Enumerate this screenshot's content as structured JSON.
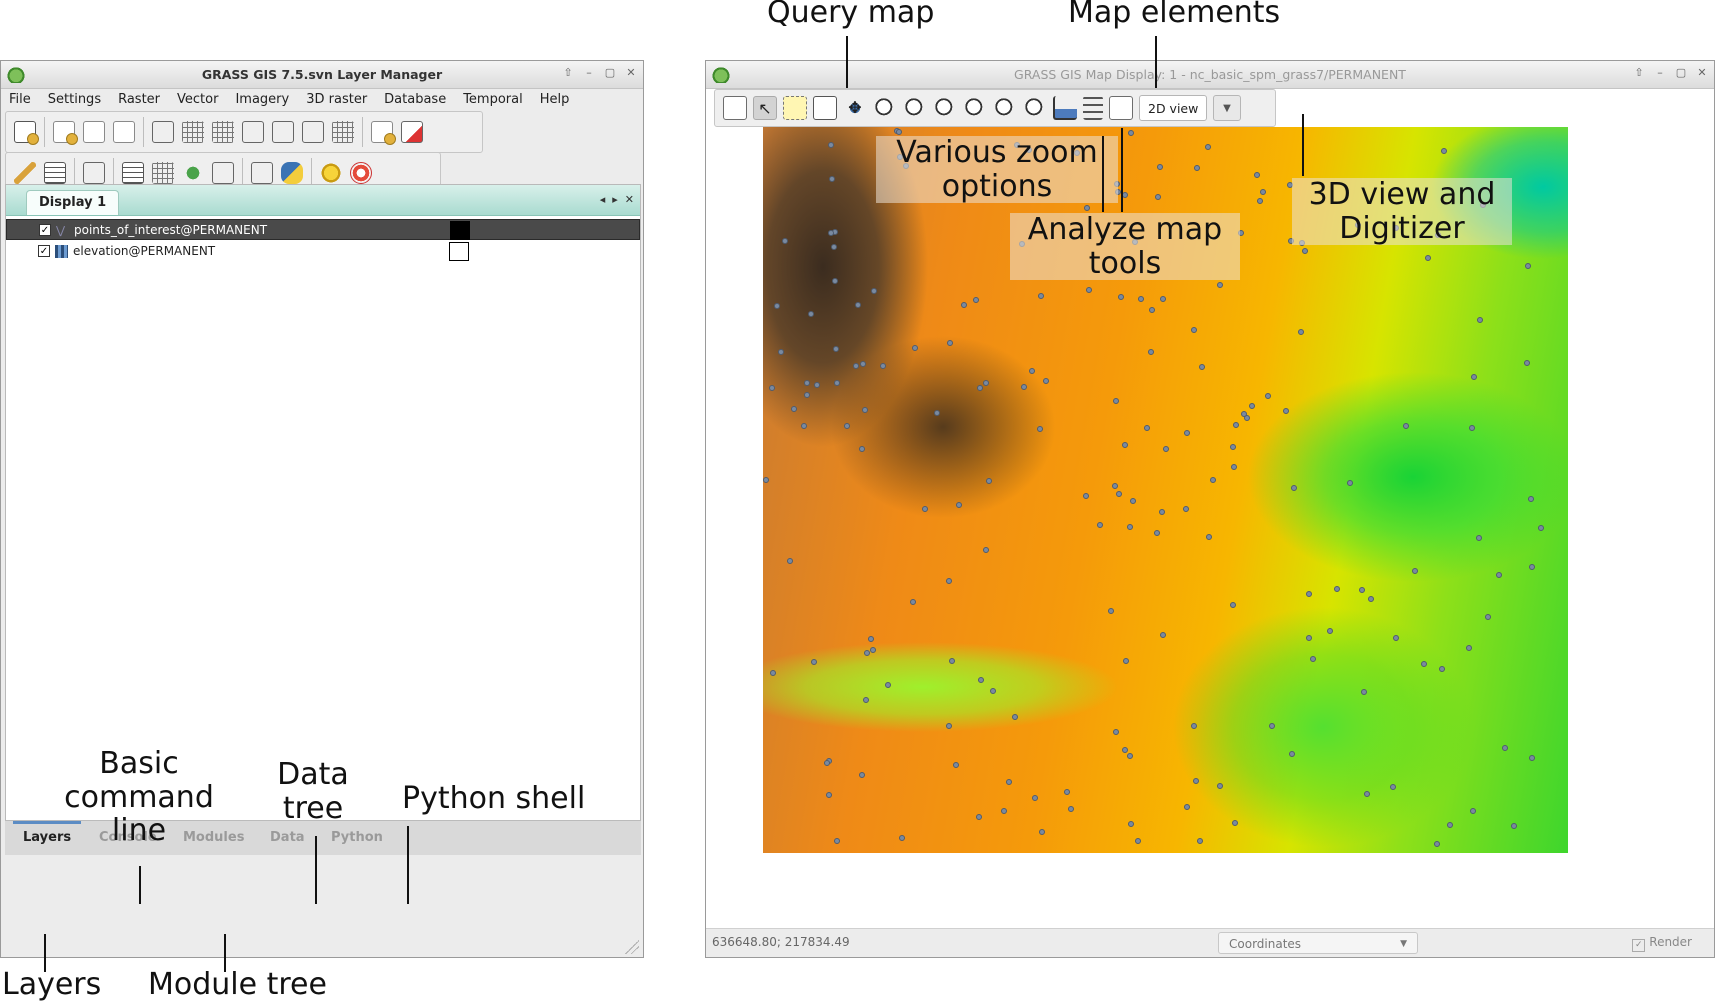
{
  "layer_manager": {
    "title": "GRASS GIS 7.5.svn Layer Manager",
    "menu": [
      "File",
      "Settings",
      "Raster",
      "Vector",
      "Imagery",
      "3D raster",
      "Database",
      "Temporal",
      "Help"
    ],
    "display_tab": "Display 1",
    "layers": [
      {
        "name": "points_of_interest@PERMANENT",
        "checked": true,
        "type": "vector-icon"
      },
      {
        "name": "elevation@PERMANENT",
        "checked": true,
        "type": "raster-icon"
      }
    ],
    "bottom_tabs": [
      "Layers",
      "Console",
      "Modules",
      "Data",
      "Python"
    ],
    "active_tab": "Layers"
  },
  "map_display": {
    "title": "GRASS GIS Map Display: 1 - nc_basic_spm_grass7/PERMANENT",
    "view_mode": "2D view",
    "coordinates": "636648.80; 217834.49",
    "status_mode": "Coordinates",
    "render_label": "Render"
  },
  "annotations": {
    "query_map": "Query map",
    "map_elements": "Map elements",
    "zoom_options": "Various zoom options",
    "analyze_tools": "Analyze map tools",
    "view_3d": "3D view and Digitizer",
    "basic_command_line": "Basic command line",
    "data_tree": "Data tree",
    "python_shell": "Python shell",
    "layers": "Layers",
    "module_tree": "Module tree"
  },
  "colors": {
    "tab_gradient": "#a9dbd0",
    "active_tab_underline": "#5c8cc4",
    "selected_layer_bg": "#4a4a4a"
  }
}
